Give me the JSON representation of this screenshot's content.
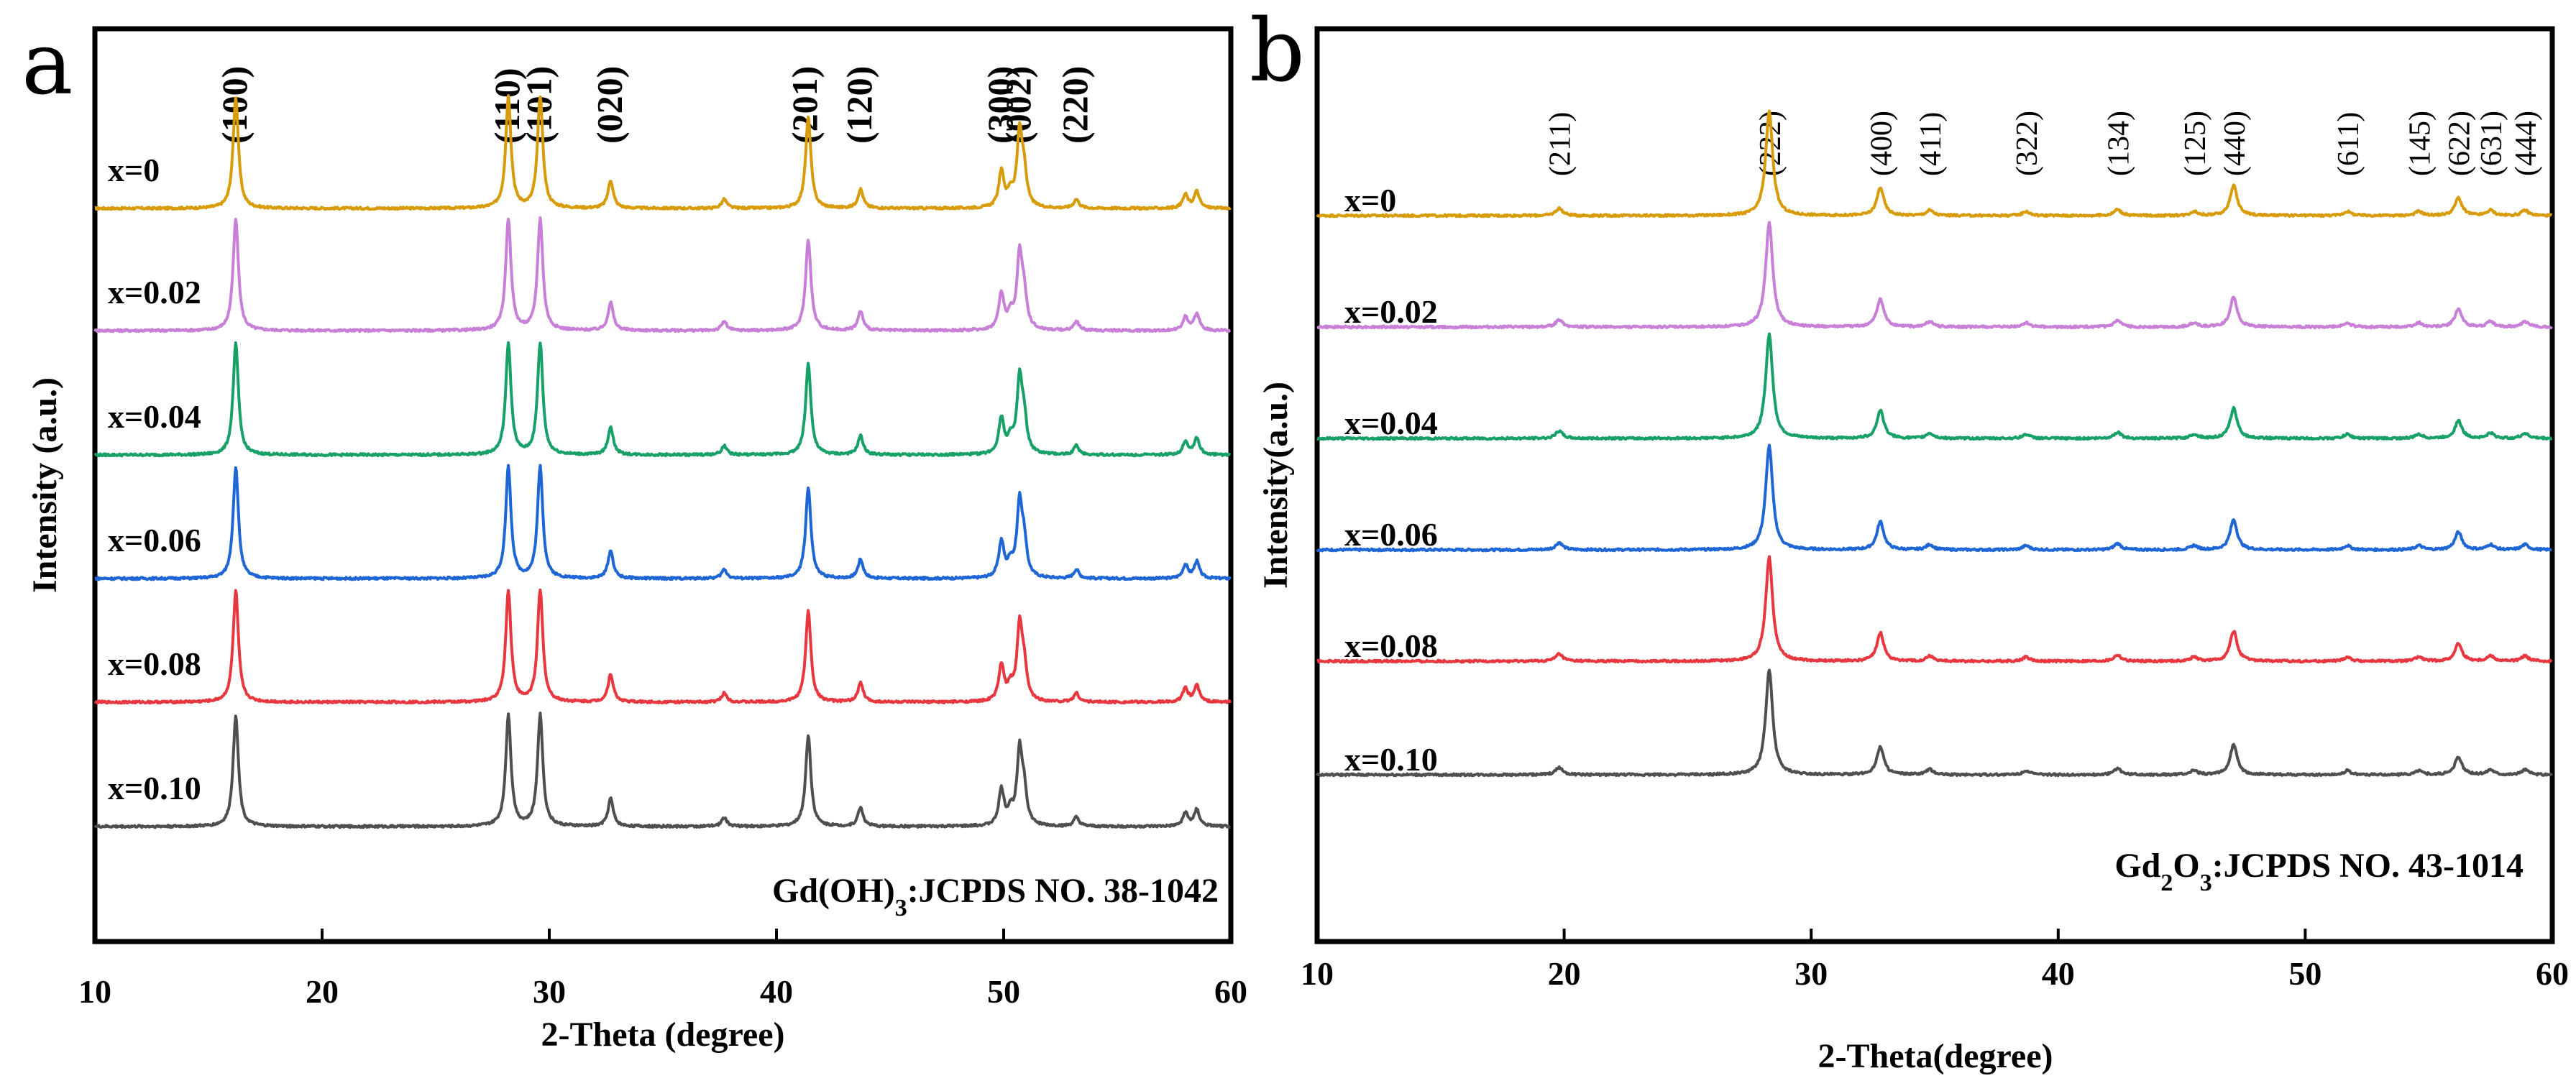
{
  "chart_data": [
    {
      "panel": "a",
      "type": "line",
      "xlabel": "2-Theta (degree)",
      "ylabel": "Intensity (a.u.)",
      "xlim": [
        10,
        60
      ],
      "x_ticks": [
        10,
        20,
        30,
        40,
        50,
        60
      ],
      "reference": "Gd(OH)3:JCPDS NO. 38-1042",
      "reference_parts": {
        "pre": "Gd(OH)",
        "sub": "3",
        "post": ":JCPDS NO. 38-1042"
      },
      "hkl_labels": [
        {
          "label": "(100)",
          "x": 16.2
        },
        {
          "label": "(110)",
          "x": 28.2
        },
        {
          "label": "(101)",
          "x": 29.6
        },
        {
          "label": "(020)",
          "x": 32.7
        },
        {
          "label": "(201)",
          "x": 41.3
        },
        {
          "label": "(120)",
          "x": 43.7
        },
        {
          "label": "(300)",
          "x": 49.9
        },
        {
          "label": "(002)",
          "x": 50.7
        },
        {
          "label": "(220)",
          "x": 53.2
        }
      ],
      "peaks": [
        {
          "x": 16.2,
          "h": 1.0
        },
        {
          "x": 28.2,
          "h": 1.0
        },
        {
          "x": 29.6,
          "h": 1.0
        },
        {
          "x": 32.7,
          "h": 0.25
        },
        {
          "x": 37.7,
          "h": 0.08
        },
        {
          "x": 41.4,
          "h": 0.82
        },
        {
          "x": 43.7,
          "h": 0.17
        },
        {
          "x": 49.9,
          "h": 0.32
        },
        {
          "x": 50.3,
          "h": 0.12
        },
        {
          "x": 50.7,
          "h": 0.65
        },
        {
          "x": 50.9,
          "h": 0.28
        },
        {
          "x": 53.2,
          "h": 0.08
        },
        {
          "x": 58.0,
          "h": 0.12
        },
        {
          "x": 58.5,
          "h": 0.15
        }
      ],
      "series": [
        {
          "name": "x=0",
          "color": "#D89B0A"
        },
        {
          "name": "x=0.02",
          "color": "#C87FD8"
        },
        {
          "name": "x=0.04",
          "color": "#17A067"
        },
        {
          "name": "x=0.06",
          "color": "#1E66D6"
        },
        {
          "name": "x=0.08",
          "color": "#E8373F"
        },
        {
          "name": "x=0.10",
          "color": "#4F4F4F"
        }
      ]
    },
    {
      "panel": "b",
      "type": "line",
      "xlabel": "2-Theta(degree)",
      "ylabel": "Intensity(a.u.)",
      "xlim": [
        10,
        60
      ],
      "x_ticks": [
        10,
        20,
        30,
        40,
        50,
        60
      ],
      "reference": "Gd2O3:JCPDS NO. 43-1014",
      "reference_parts": {
        "pre": "Gd",
        "sub1": "2",
        "mid": "O",
        "sub2": "3",
        "post": ":JCPDS NO. 43-1014"
      },
      "hkl_labels": [
        {
          "label": "(211)",
          "x": 19.8
        },
        {
          "label": "(222)",
          "x": 28.3
        },
        {
          "label": "(400)",
          "x": 32.8
        },
        {
          "label": "(411)",
          "x": 34.8
        },
        {
          "label": "(322)",
          "x": 38.7
        },
        {
          "label": "(134)",
          "x": 42.4
        },
        {
          "label": "(125)",
          "x": 45.5
        },
        {
          "label": "(440)",
          "x": 47.1
        },
        {
          "label": "(611)",
          "x": 51.7
        },
        {
          "label": "(145)",
          "x": 54.6
        },
        {
          "label": "(622)",
          "x": 56.2
        },
        {
          "label": "(631)",
          "x": 57.5
        },
        {
          "label": "(444)",
          "x": 58.9
        }
      ],
      "peaks": [
        {
          "x": 19.8,
          "h": 0.07
        },
        {
          "x": 28.3,
          "h": 1.0
        },
        {
          "x": 32.8,
          "h": 0.27
        },
        {
          "x": 34.8,
          "h": 0.05
        },
        {
          "x": 38.7,
          "h": 0.04
        },
        {
          "x": 42.4,
          "h": 0.06
        },
        {
          "x": 45.5,
          "h": 0.04
        },
        {
          "x": 47.1,
          "h": 0.29
        },
        {
          "x": 51.7,
          "h": 0.04
        },
        {
          "x": 54.6,
          "h": 0.04
        },
        {
          "x": 56.2,
          "h": 0.17
        },
        {
          "x": 57.5,
          "h": 0.05
        },
        {
          "x": 58.9,
          "h": 0.05
        }
      ],
      "series": [
        {
          "name": "x=0",
          "color": "#D89B0A"
        },
        {
          "name": "x=0.02",
          "color": "#C87FD8"
        },
        {
          "name": "x=0.04",
          "color": "#17A067"
        },
        {
          "name": "x=0.06",
          "color": "#1E66D6"
        },
        {
          "name": "x=0.08",
          "color": "#E8373F"
        },
        {
          "name": "x=0.10",
          "color": "#4F4F4F"
        }
      ]
    }
  ]
}
